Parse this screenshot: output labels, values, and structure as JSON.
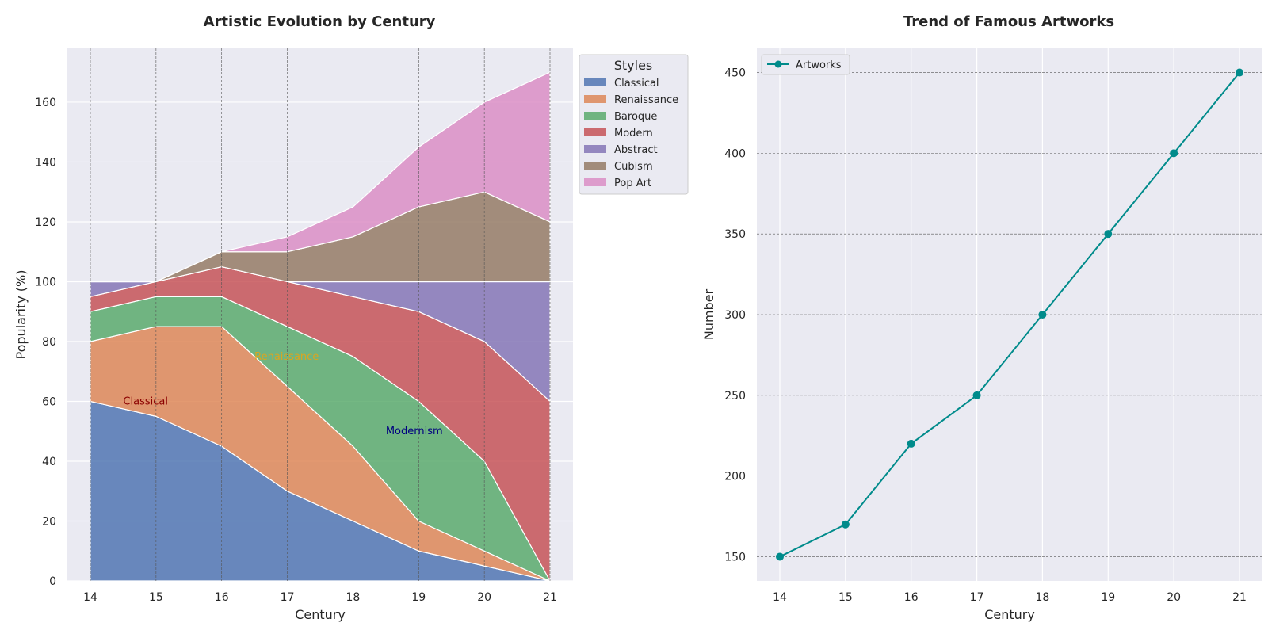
{
  "chart_data": [
    {
      "type": "area",
      "stacked": true,
      "title": "Artistic Evolution by Century",
      "xlabel": "Century",
      "ylabel": "Popularity (%)",
      "x": [
        14,
        15,
        16,
        17,
        18,
        19,
        20,
        21
      ],
      "xlim": [
        13.65,
        21.35
      ],
      "ylim": [
        0,
        178
      ],
      "yticks": [
        0,
        20,
        40,
        60,
        80,
        100,
        120,
        140,
        160
      ],
      "grid": true,
      "legend": {
        "title": "Styles",
        "placement": "outside-right-top"
      },
      "series": [
        {
          "name": "Classical",
          "color": "#4c72b0",
          "values": [
            60,
            55,
            45,
            30,
            20,
            10,
            5,
            0
          ]
        },
        {
          "name": "Renaissance",
          "color": "#dd8452",
          "values": [
            20,
            30,
            40,
            35,
            25,
            10,
            5,
            0
          ]
        },
        {
          "name": "Baroque",
          "color": "#55a868",
          "values": [
            10,
            10,
            10,
            20,
            30,
            40,
            30,
            0
          ]
        },
        {
          "name": "Modern",
          "color": "#c44e52",
          "values": [
            5,
            5,
            10,
            15,
            20,
            30,
            40,
            60
          ]
        },
        {
          "name": "Abstract",
          "color": "#8172b3",
          "values": [
            5,
            0,
            0,
            0,
            5,
            10,
            20,
            40
          ]
        },
        {
          "name": "Cubism",
          "color": "#937860",
          "values": [
            0,
            0,
            5,
            10,
            15,
            25,
            30,
            20
          ]
        },
        {
          "name": "Pop Art",
          "color": "#da8bc3",
          "values": [
            0,
            0,
            0,
            5,
            10,
            20,
            30,
            50
          ]
        }
      ],
      "annotations": [
        {
          "text": "Classical",
          "x": 14.5,
          "y": 60,
          "color": "#8b0000"
        },
        {
          "text": "Renaissance",
          "x": 16.5,
          "y": 75,
          "color": "#daa520"
        },
        {
          "text": "Modernism",
          "x": 18.5,
          "y": 50,
          "color": "#000080"
        }
      ]
    },
    {
      "type": "line",
      "title": "Trend of Famous Artworks",
      "xlabel": "Century",
      "ylabel": "Number",
      "x": [
        14,
        15,
        16,
        17,
        18,
        19,
        20,
        21
      ],
      "xlim": [
        13.65,
        21.35
      ],
      "ylim": [
        135,
        465
      ],
      "yticks": [
        150,
        200,
        250,
        300,
        350,
        400,
        450
      ],
      "grid": true,
      "legend": {
        "placement": "top-left"
      },
      "series": [
        {
          "name": "Artworks",
          "color": "#008b8b",
          "marker": "circle",
          "values": [
            150,
            170,
            220,
            250,
            300,
            350,
            400,
            450
          ]
        }
      ]
    }
  ]
}
